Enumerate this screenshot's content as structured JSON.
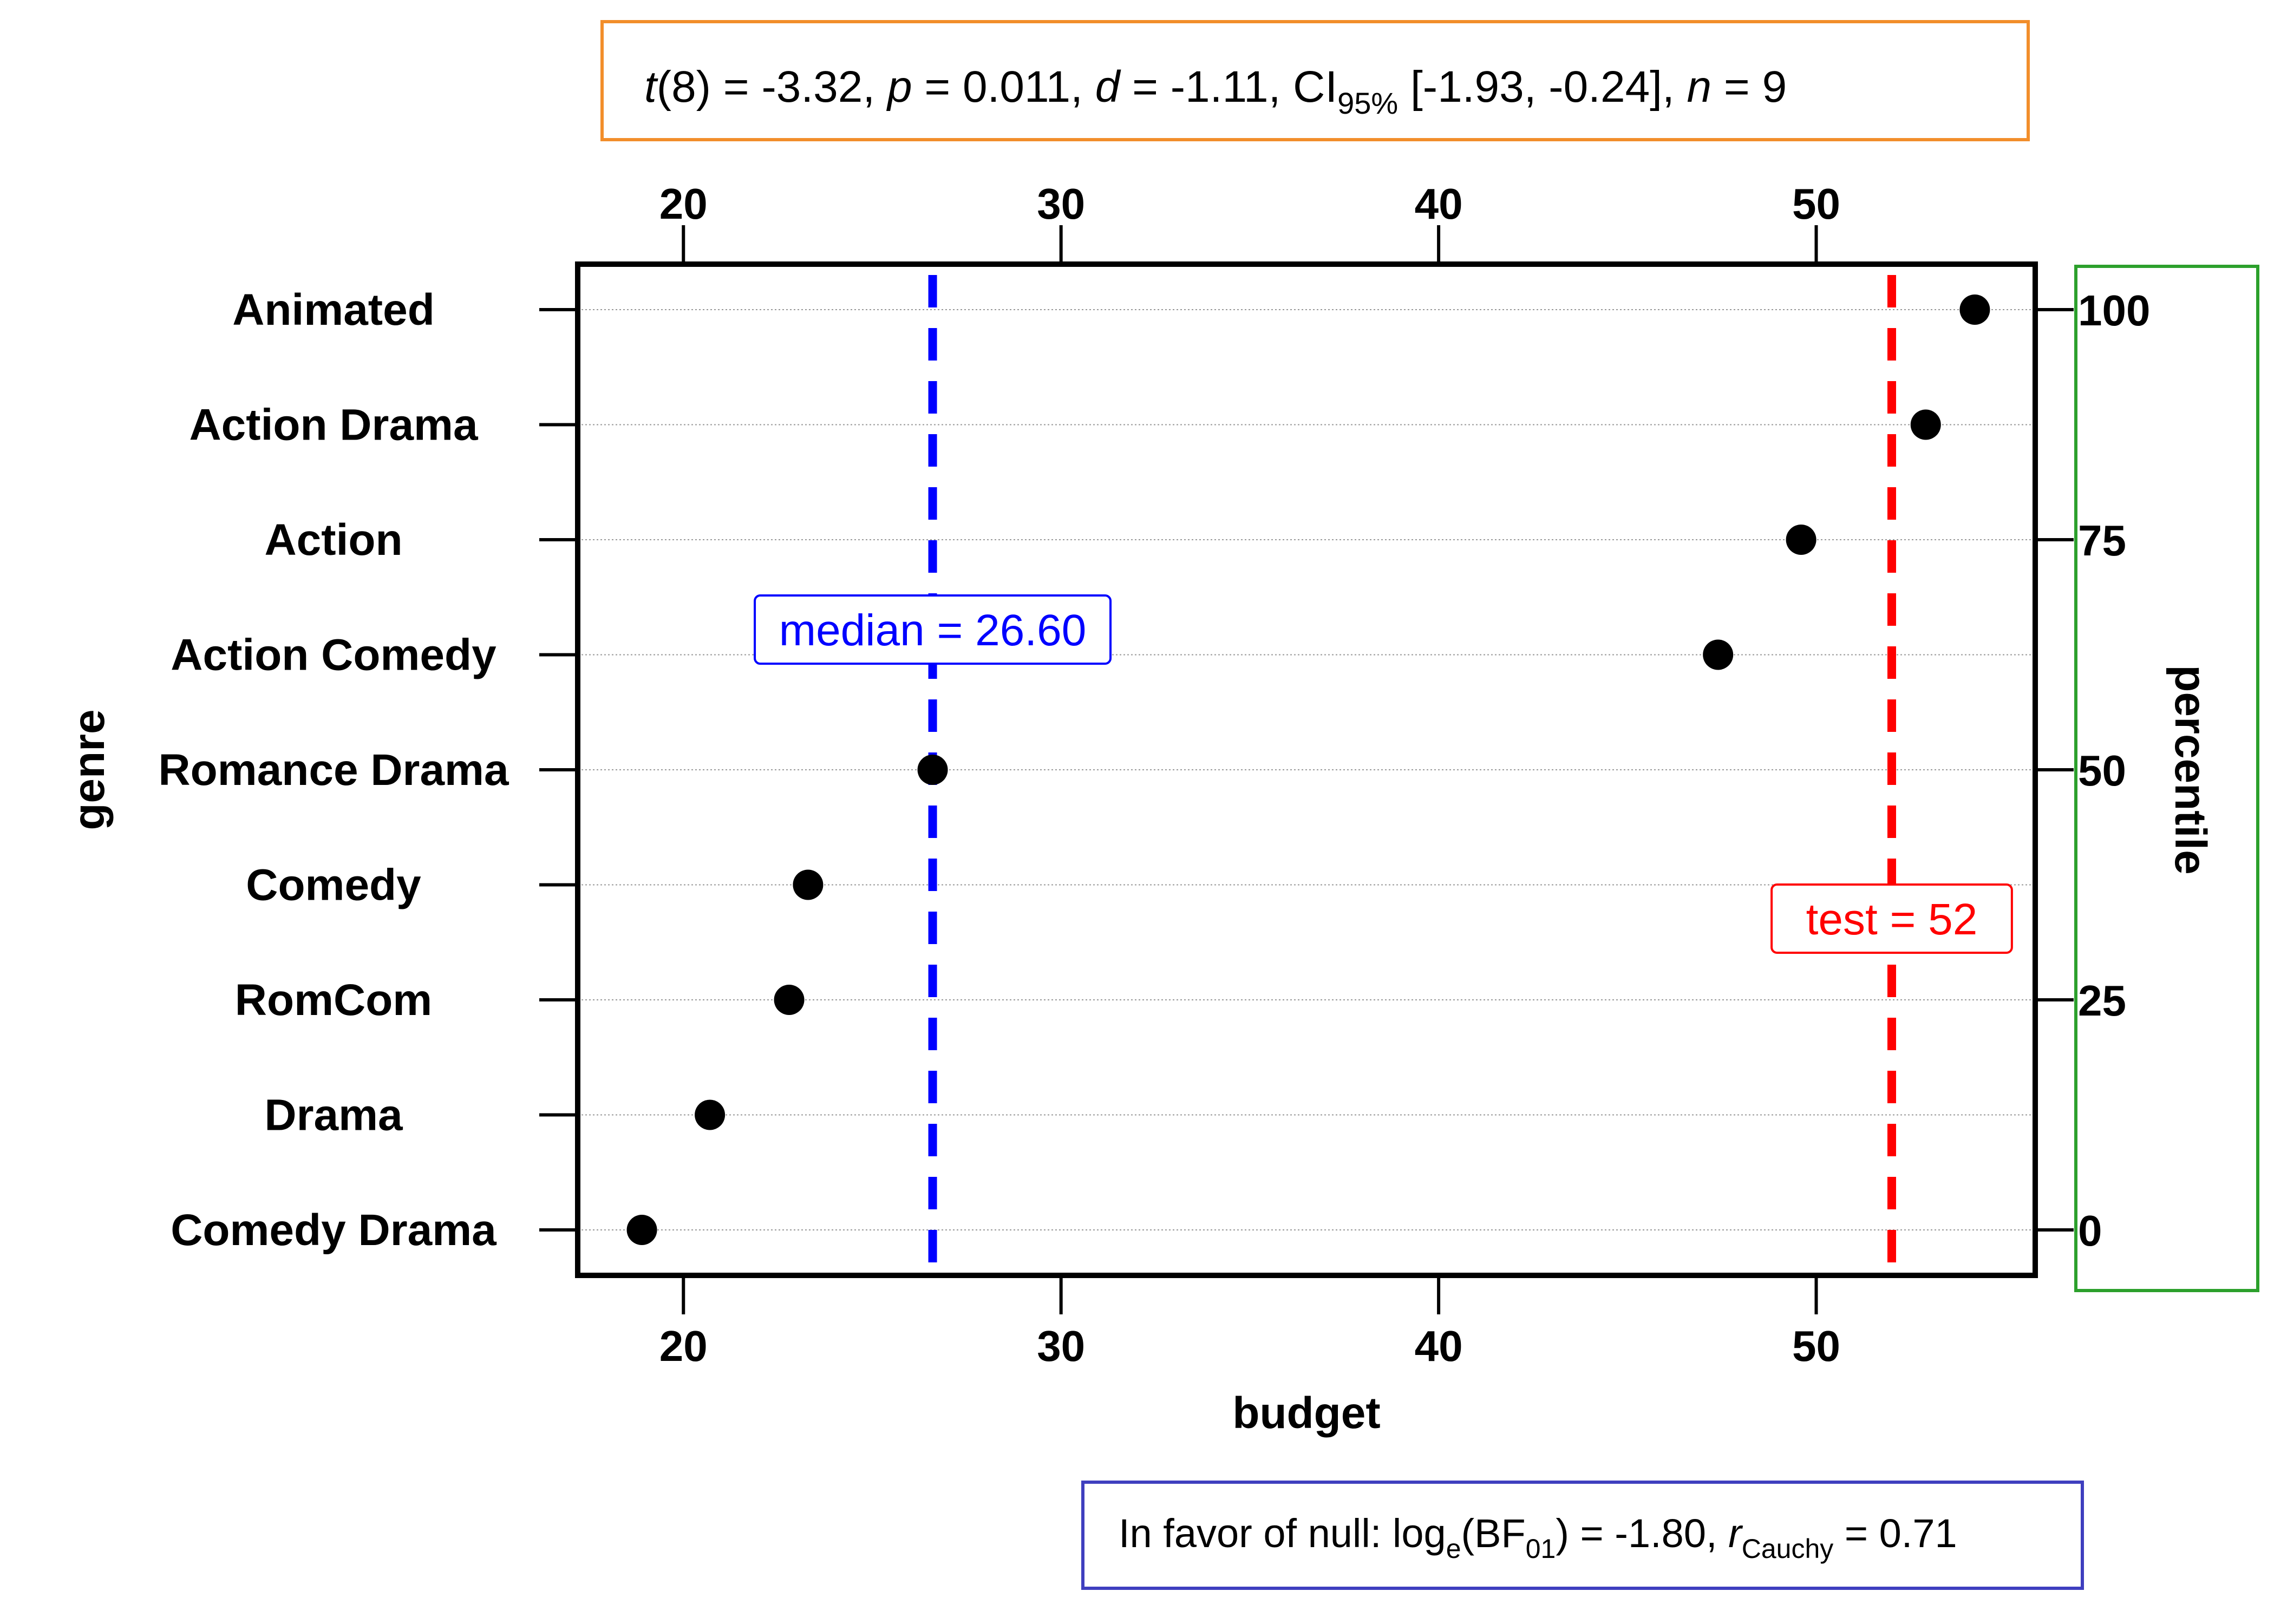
{
  "chart_data": {
    "type": "scatter",
    "subtitle_parts": {
      "t_label": "t",
      "t_value": "(8) = -3.32, ",
      "p_label": "p",
      "p_value": " = 0.011, ",
      "d_label": "d",
      "d_value": " = -1.11, CI",
      "ci_sub": "95%",
      "ci_value": " [-1.93, -0.24], ",
      "n_label": "n",
      "n_value": " = 9"
    },
    "caption_parts": {
      "prefix": "In favor of null: log",
      "log_sub": "e",
      "bf_open": "(BF",
      "bf_sub": "01",
      "bf_value": ") = -1.80, ",
      "r_label": "r",
      "r_sub": "Cauchy",
      "r_value": " = 0.71"
    },
    "xlabel": "budget",
    "ylabel": "genre",
    "y2label": "percentile",
    "xlim": [
      17.2,
      55.8
    ],
    "xticks": [
      "20",
      "30",
      "40",
      "50"
    ],
    "xtick_values": [
      20,
      30,
      40,
      50
    ],
    "percentile_ticks": [
      "0",
      "25",
      "50",
      "75",
      "100"
    ],
    "percentile_values": [
      0,
      25,
      50,
      75,
      100
    ],
    "categories": [
      "Animated",
      "Action Drama",
      "Action",
      "Action Comedy",
      "Romance Drama",
      "Comedy",
      "RomCom",
      "Drama",
      "Comedy Drama"
    ],
    "values": [
      54.2,
      52.9,
      49.6,
      47.4,
      26.6,
      23.3,
      22.8,
      20.7,
      18.9
    ],
    "median": {
      "value": 26.6,
      "label": "median = 26.60"
    },
    "test": {
      "value": 52,
      "label": "test = 52"
    },
    "grid": true,
    "colors": {
      "median": "#0000ff",
      "test": "#ff0000",
      "points": "#000000",
      "subtitle_box": "#f28e2b",
      "caption_box": "#3f3fbf",
      "percentile_box": "#2ca02c",
      "grid": "#999999"
    }
  }
}
